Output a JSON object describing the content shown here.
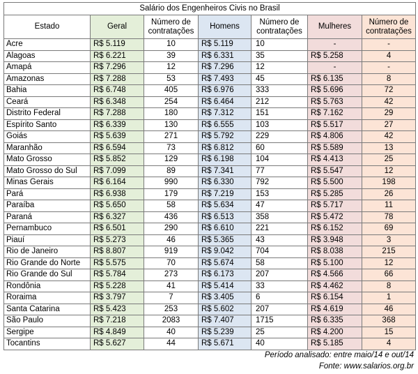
{
  "title": "Salário dos Engenheiros Civis no Brasil",
  "headers": {
    "estado": "Estado",
    "geral": "Geral",
    "num_geral": "Número de contratações",
    "homens": "Homens",
    "num_homens": "Número de contratações",
    "mulheres": "Mulheres",
    "num_mulheres": "Número de contratações"
  },
  "rows": [
    {
      "estado": "Acre",
      "geral": "R$ 5.119",
      "n_geral": "10",
      "homens": "R$ 5.119",
      "n_homens": "10",
      "mulheres": "-",
      "n_mulheres": "-"
    },
    {
      "estado": "Alagoas",
      "geral": "R$ 6.221",
      "n_geral": "39",
      "homens": "R$ 6.331",
      "n_homens": "35",
      "mulheres": "R$ 5.258",
      "n_mulheres": "4"
    },
    {
      "estado": "Amapá",
      "geral": "R$ 7.296",
      "n_geral": "12",
      "homens": "R$ 7.296",
      "n_homens": "12",
      "mulheres": "-",
      "n_mulheres": "-"
    },
    {
      "estado": "Amazonas",
      "geral": "R$ 7.288",
      "n_geral": "53",
      "homens": "R$ 7.493",
      "n_homens": "45",
      "mulheres": "R$ 6.135",
      "n_mulheres": "8"
    },
    {
      "estado": "Bahia",
      "geral": "R$ 6.748",
      "n_geral": "405",
      "homens": "R$ 6.976",
      "n_homens": "333",
      "mulheres": "R$ 5.696",
      "n_mulheres": "72"
    },
    {
      "estado": "Ceará",
      "geral": "R$ 6.348",
      "n_geral": "254",
      "homens": "R$ 6.464",
      "n_homens": "212",
      "mulheres": "R$ 5.763",
      "n_mulheres": "42"
    },
    {
      "estado": "Distrito Federal",
      "geral": "R$ 7.288",
      "n_geral": "180",
      "homens": "R$ 7.312",
      "n_homens": "151",
      "mulheres": "R$ 7.162",
      "n_mulheres": "29"
    },
    {
      "estado": "Espírito Santo",
      "geral": "R$ 6.339",
      "n_geral": "130",
      "homens": "R$ 6.555",
      "n_homens": "103",
      "mulheres": "R$ 5.517",
      "n_mulheres": "27"
    },
    {
      "estado": "Goiás",
      "geral": "R$ 5.639",
      "n_geral": "271",
      "homens": "R$ 5.792",
      "n_homens": "229",
      "mulheres": "R$ 4.806",
      "n_mulheres": "42"
    },
    {
      "estado": "Maranhão",
      "geral": "R$ 6.594",
      "n_geral": "73",
      "homens": "R$ 6.812",
      "n_homens": "60",
      "mulheres": "R$ 5.589",
      "n_mulheres": "13"
    },
    {
      "estado": "Mato Grosso",
      "geral": "R$ 5.852",
      "n_geral": "129",
      "homens": "R$ 6.198",
      "n_homens": "104",
      "mulheres": "R$ 4.413",
      "n_mulheres": "25"
    },
    {
      "estado": "Mato Grosso do Sul",
      "geral": "R$ 7.099",
      "n_geral": "89",
      "homens": "R$ 7.341",
      "n_homens": "77",
      "mulheres": "R$ 5.547",
      "n_mulheres": "12"
    },
    {
      "estado": "Minas Gerais",
      "geral": "R$ 6.164",
      "n_geral": "990",
      "homens": "R$ 6.330",
      "n_homens": "792",
      "mulheres": "R$ 5.500",
      "n_mulheres": "198"
    },
    {
      "estado": "Pará",
      "geral": "R$ 6.938",
      "n_geral": "179",
      "homens": "R$ 7.219",
      "n_homens": "153",
      "mulheres": "R$ 5.285",
      "n_mulheres": "26"
    },
    {
      "estado": "Paraíba",
      "geral": "R$ 5.650",
      "n_geral": "58",
      "homens": "R$ 5.634",
      "n_homens": "47",
      "mulheres": "R$ 5.717",
      "n_mulheres": "11"
    },
    {
      "estado": "Paraná",
      "geral": "R$ 6.327",
      "n_geral": "436",
      "homens": "R$ 6.513",
      "n_homens": "358",
      "mulheres": "R$ 5.472",
      "n_mulheres": "78"
    },
    {
      "estado": "Pernambuco",
      "geral": "R$ 6.501",
      "n_geral": "290",
      "homens": "R$ 6.610",
      "n_homens": "221",
      "mulheres": "R$ 6.152",
      "n_mulheres": "69"
    },
    {
      "estado": "Piauí",
      "geral": "R$ 5.273",
      "n_geral": "46",
      "homens": "R$ 5.365",
      "n_homens": "43",
      "mulheres": "R$ 3.948",
      "n_mulheres": "3"
    },
    {
      "estado": "Rio de Janeiro",
      "geral": "R$ 8.807",
      "n_geral": "919",
      "homens": "R$ 9.042",
      "n_homens": "704",
      "mulheres": "R$ 8.038",
      "n_mulheres": "215"
    },
    {
      "estado": "Rio Grande do Norte",
      "geral": "R$ 5.575",
      "n_geral": "70",
      "homens": "R$ 5.674",
      "n_homens": "58",
      "mulheres": "R$ 5.100",
      "n_mulheres": "12"
    },
    {
      "estado": "Rio Grande do Sul",
      "geral": "R$ 5.784",
      "n_geral": "273",
      "homens": "R$ 6.173",
      "n_homens": "207",
      "mulheres": "R$ 4.566",
      "n_mulheres": "66"
    },
    {
      "estado": "Rondônia",
      "geral": "R$ 5.228",
      "n_geral": "41",
      "homens": "R$ 5.414",
      "n_homens": "33",
      "mulheres": "R$ 4.462",
      "n_mulheres": "8"
    },
    {
      "estado": "Roraima",
      "geral": "R$ 3.797",
      "n_geral": "7",
      "homens": "R$ 3.405",
      "n_homens": "6",
      "mulheres": "R$ 6.154",
      "n_mulheres": "1"
    },
    {
      "estado": "Santa Catarina",
      "geral": "R$ 5.423",
      "n_geral": "253",
      "homens": "R$ 5.602",
      "n_homens": "207",
      "mulheres": "R$ 4.619",
      "n_mulheres": "46"
    },
    {
      "estado": "São Paulo",
      "geral": "R$ 7.218",
      "n_geral": "2083",
      "homens": "R$ 7.407",
      "n_homens": "1715",
      "mulheres": "R$ 6.335",
      "n_mulheres": "368"
    },
    {
      "estado": "Sergipe",
      "geral": "R$ 4.849",
      "n_geral": "40",
      "homens": "R$ 5.239",
      "n_homens": "25",
      "mulheres": "R$ 4.200",
      "n_mulheres": "15"
    },
    {
      "estado": "Tocantins",
      "geral": "R$ 5.627",
      "n_geral": "44",
      "homens": "R$ 5.671",
      "n_homens": "40",
      "mulheres": "R$ 5.185",
      "n_mulheres": "4"
    }
  ],
  "footer": {
    "periodo": "Período analisado: entre maio/14 e out/14",
    "fonte": "Fonte: www.salarios.org.br"
  }
}
